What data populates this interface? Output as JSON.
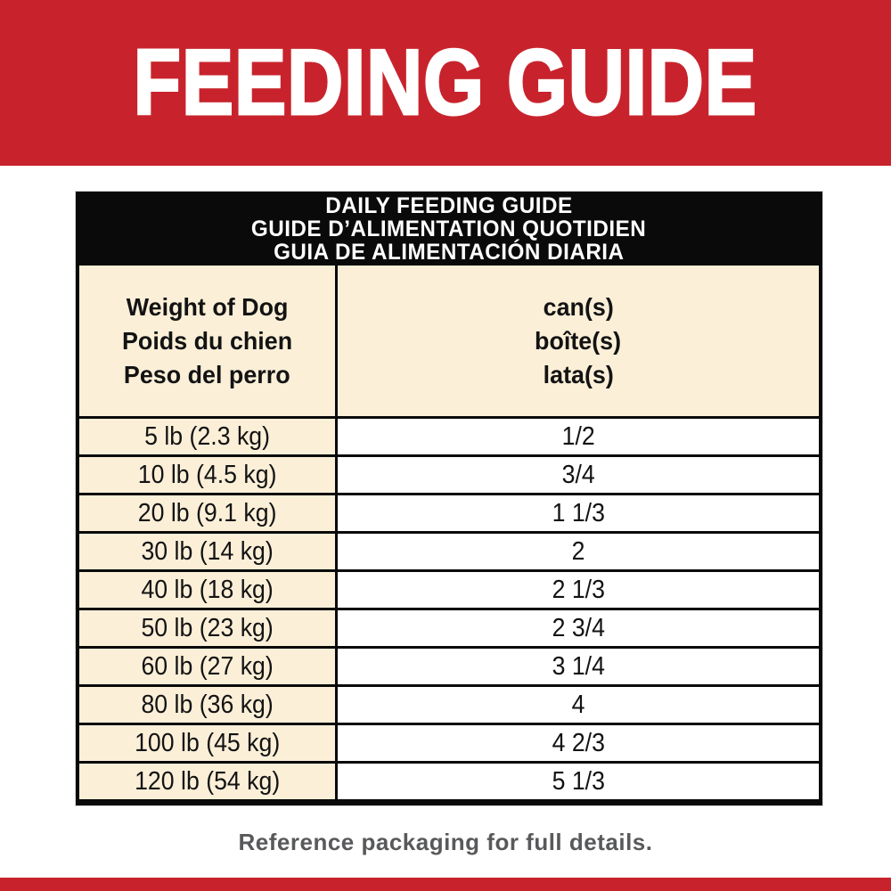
{
  "banner": {
    "title": "FEEDING GUIDE"
  },
  "table": {
    "header_lines": [
      "DAILY FEEDING GUIDE",
      "GUIDE D’ALIMENTATION QUOTIDIEN",
      "GUIA DE ALIMENTACIÓN DIARIA"
    ],
    "columns": {
      "weight": [
        "Weight of Dog",
        "Poids du chien",
        "Peso del perro"
      ],
      "cans": [
        "can(s)",
        "boîte(s)",
        "lata(s)"
      ]
    },
    "rows": [
      {
        "weight": "5 lb (2.3 kg)",
        "cans": "1/2"
      },
      {
        "weight": "10 lb (4.5 kg)",
        "cans": "3/4"
      },
      {
        "weight": "20 lb (9.1 kg)",
        "cans": "1 1/3"
      },
      {
        "weight": "30 lb (14 kg)",
        "cans": "2"
      },
      {
        "weight": "40 lb (18 kg)",
        "cans": "2 1/3"
      },
      {
        "weight": "50 lb (23 kg)",
        "cans": "2 3/4"
      },
      {
        "weight": "60 lb (27 kg)",
        "cans": "3 1/4"
      },
      {
        "weight": "80 lb (36 kg)",
        "cans": "4"
      },
      {
        "weight": "100 lb (45 kg)",
        "cans": "4 2/3"
      },
      {
        "weight": "120 lb (54 kg)",
        "cans": "5 1/3"
      }
    ]
  },
  "footer": {
    "note": "Reference packaging for full details."
  },
  "colors": {
    "red": "#c8232c",
    "cream": "#fbefd8",
    "black": "#0a0a0a",
    "footer_gray": "#58595b"
  },
  "chart_data": {
    "type": "table",
    "title": "DAILY FEEDING GUIDE",
    "categories": [
      "5 lb (2.3 kg)",
      "10 lb (4.5 kg)",
      "20 lb (9.1 kg)",
      "30 lb (14 kg)",
      "40 lb (18 kg)",
      "50 lb (23 kg)",
      "60 lb (27 kg)",
      "80 lb (36 kg)",
      "100 lb (45 kg)",
      "120 lb (54 kg)"
    ],
    "values": [
      "1/2",
      "3/4",
      "1 1/3",
      "2",
      "2 1/3",
      "2 3/4",
      "3 1/4",
      "4",
      "4 2/3",
      "5 1/3"
    ],
    "xlabel": "Weight of Dog",
    "ylabel": "can(s)"
  }
}
